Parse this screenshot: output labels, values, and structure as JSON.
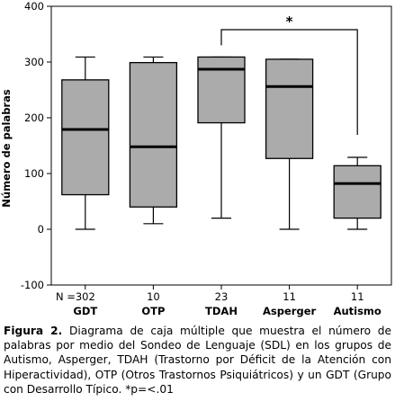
{
  "chart_data": {
    "type": "box",
    "ylabel": "Número de palabras",
    "ylim": [
      -100,
      400
    ],
    "yticks": [
      -100,
      0,
      100,
      200,
      300,
      400
    ],
    "n_label": "N =",
    "categories": [
      "GDT",
      "OTP",
      "TDAH",
      "Asperger",
      "Autismo"
    ],
    "n": [
      "302",
      "10",
      "23",
      "11",
      "11"
    ],
    "boxes": [
      {
        "whisker_low": 0,
        "q1": 62,
        "median": 179,
        "q3": 268,
        "whisker_high": 309
      },
      {
        "whisker_low": 10,
        "q1": 40,
        "median": 148,
        "q3": 299,
        "whisker_high": 309
      },
      {
        "whisker_low": 20,
        "q1": 191,
        "median": 287,
        "q3": 309,
        "whisker_high": 309
      },
      {
        "whisker_low": 0,
        "q1": 127,
        "median": 256,
        "q3": 305,
        "whisker_high": 305
      },
      {
        "whisker_low": 0,
        "q1": 20,
        "median": 82,
        "q3": 114,
        "whisker_high": 129
      }
    ],
    "significance": {
      "from": "TDAH",
      "to": "Autismo",
      "label": "*"
    },
    "colors": {
      "box_fill": "#ababab",
      "stroke": "#000000"
    }
  },
  "caption": {
    "label": "Figura 2.",
    "text": " Diagrama de caja múltiple que muestra el número de palabras por medio del Sondeo de Lenguaje (SDL) en los grupos de Autismo, Asperger, TDAH (Trastorno por Déficit de la Atención con Hiperactividad), OTP (Otros Trastornos Psiquiátricos) y un GDT (Grupo con Desarrollo Típico. *p=<.01"
  }
}
